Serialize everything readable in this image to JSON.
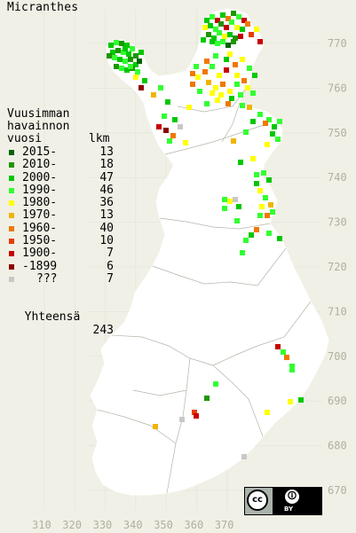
{
  "title": "Micranthes",
  "legend": {
    "heading_lines": [
      "Vuusimman",
      "havainnon",
      "vuosi"
    ],
    "count_header": "lkm",
    "rows": [
      {
        "label": "2015-",
        "count": "13",
        "color": "#006400"
      },
      {
        "label": "2010-",
        "count": "18",
        "color": "#1e9600"
      },
      {
        "label": "2000-",
        "count": "47",
        "color": "#00c800"
      },
      {
        "label": "1990-",
        "count": "46",
        "color": "#32ff32"
      },
      {
        "label": "1980-",
        "count": "36",
        "color": "#ffff00"
      },
      {
        "label": "1970-",
        "count": "13",
        "color": "#f0b400"
      },
      {
        "label": "1960-",
        "count": "40",
        "color": "#f07800"
      },
      {
        "label": "1950-",
        "count": "10",
        "color": "#e63c00"
      },
      {
        "label": "1900-",
        "count": "7",
        "color": "#c80000"
      },
      {
        "label": "-1899",
        "count": "6",
        "color": "#8c0000"
      },
      {
        "label": "???",
        "count": "7",
        "color": "#c8c8c8"
      }
    ],
    "total_label": "Yhteensä",
    "total_value": "243"
  },
  "grid_labels": {
    "northing": [
      "770",
      "760",
      "750",
      "740",
      "730",
      "720",
      "710",
      "700",
      "690",
      "680",
      "670"
    ],
    "easting": [
      "310",
      "320",
      "330",
      "340",
      "350",
      "360",
      "370"
    ]
  },
  "license_badge": {
    "cc": "cc",
    "by": "BY"
  },
  "colors": {
    "background": "#f0f0e6",
    "land": "#ffffff",
    "grid": "#dcdcd0",
    "borders": "#b4b4aa"
  }
}
